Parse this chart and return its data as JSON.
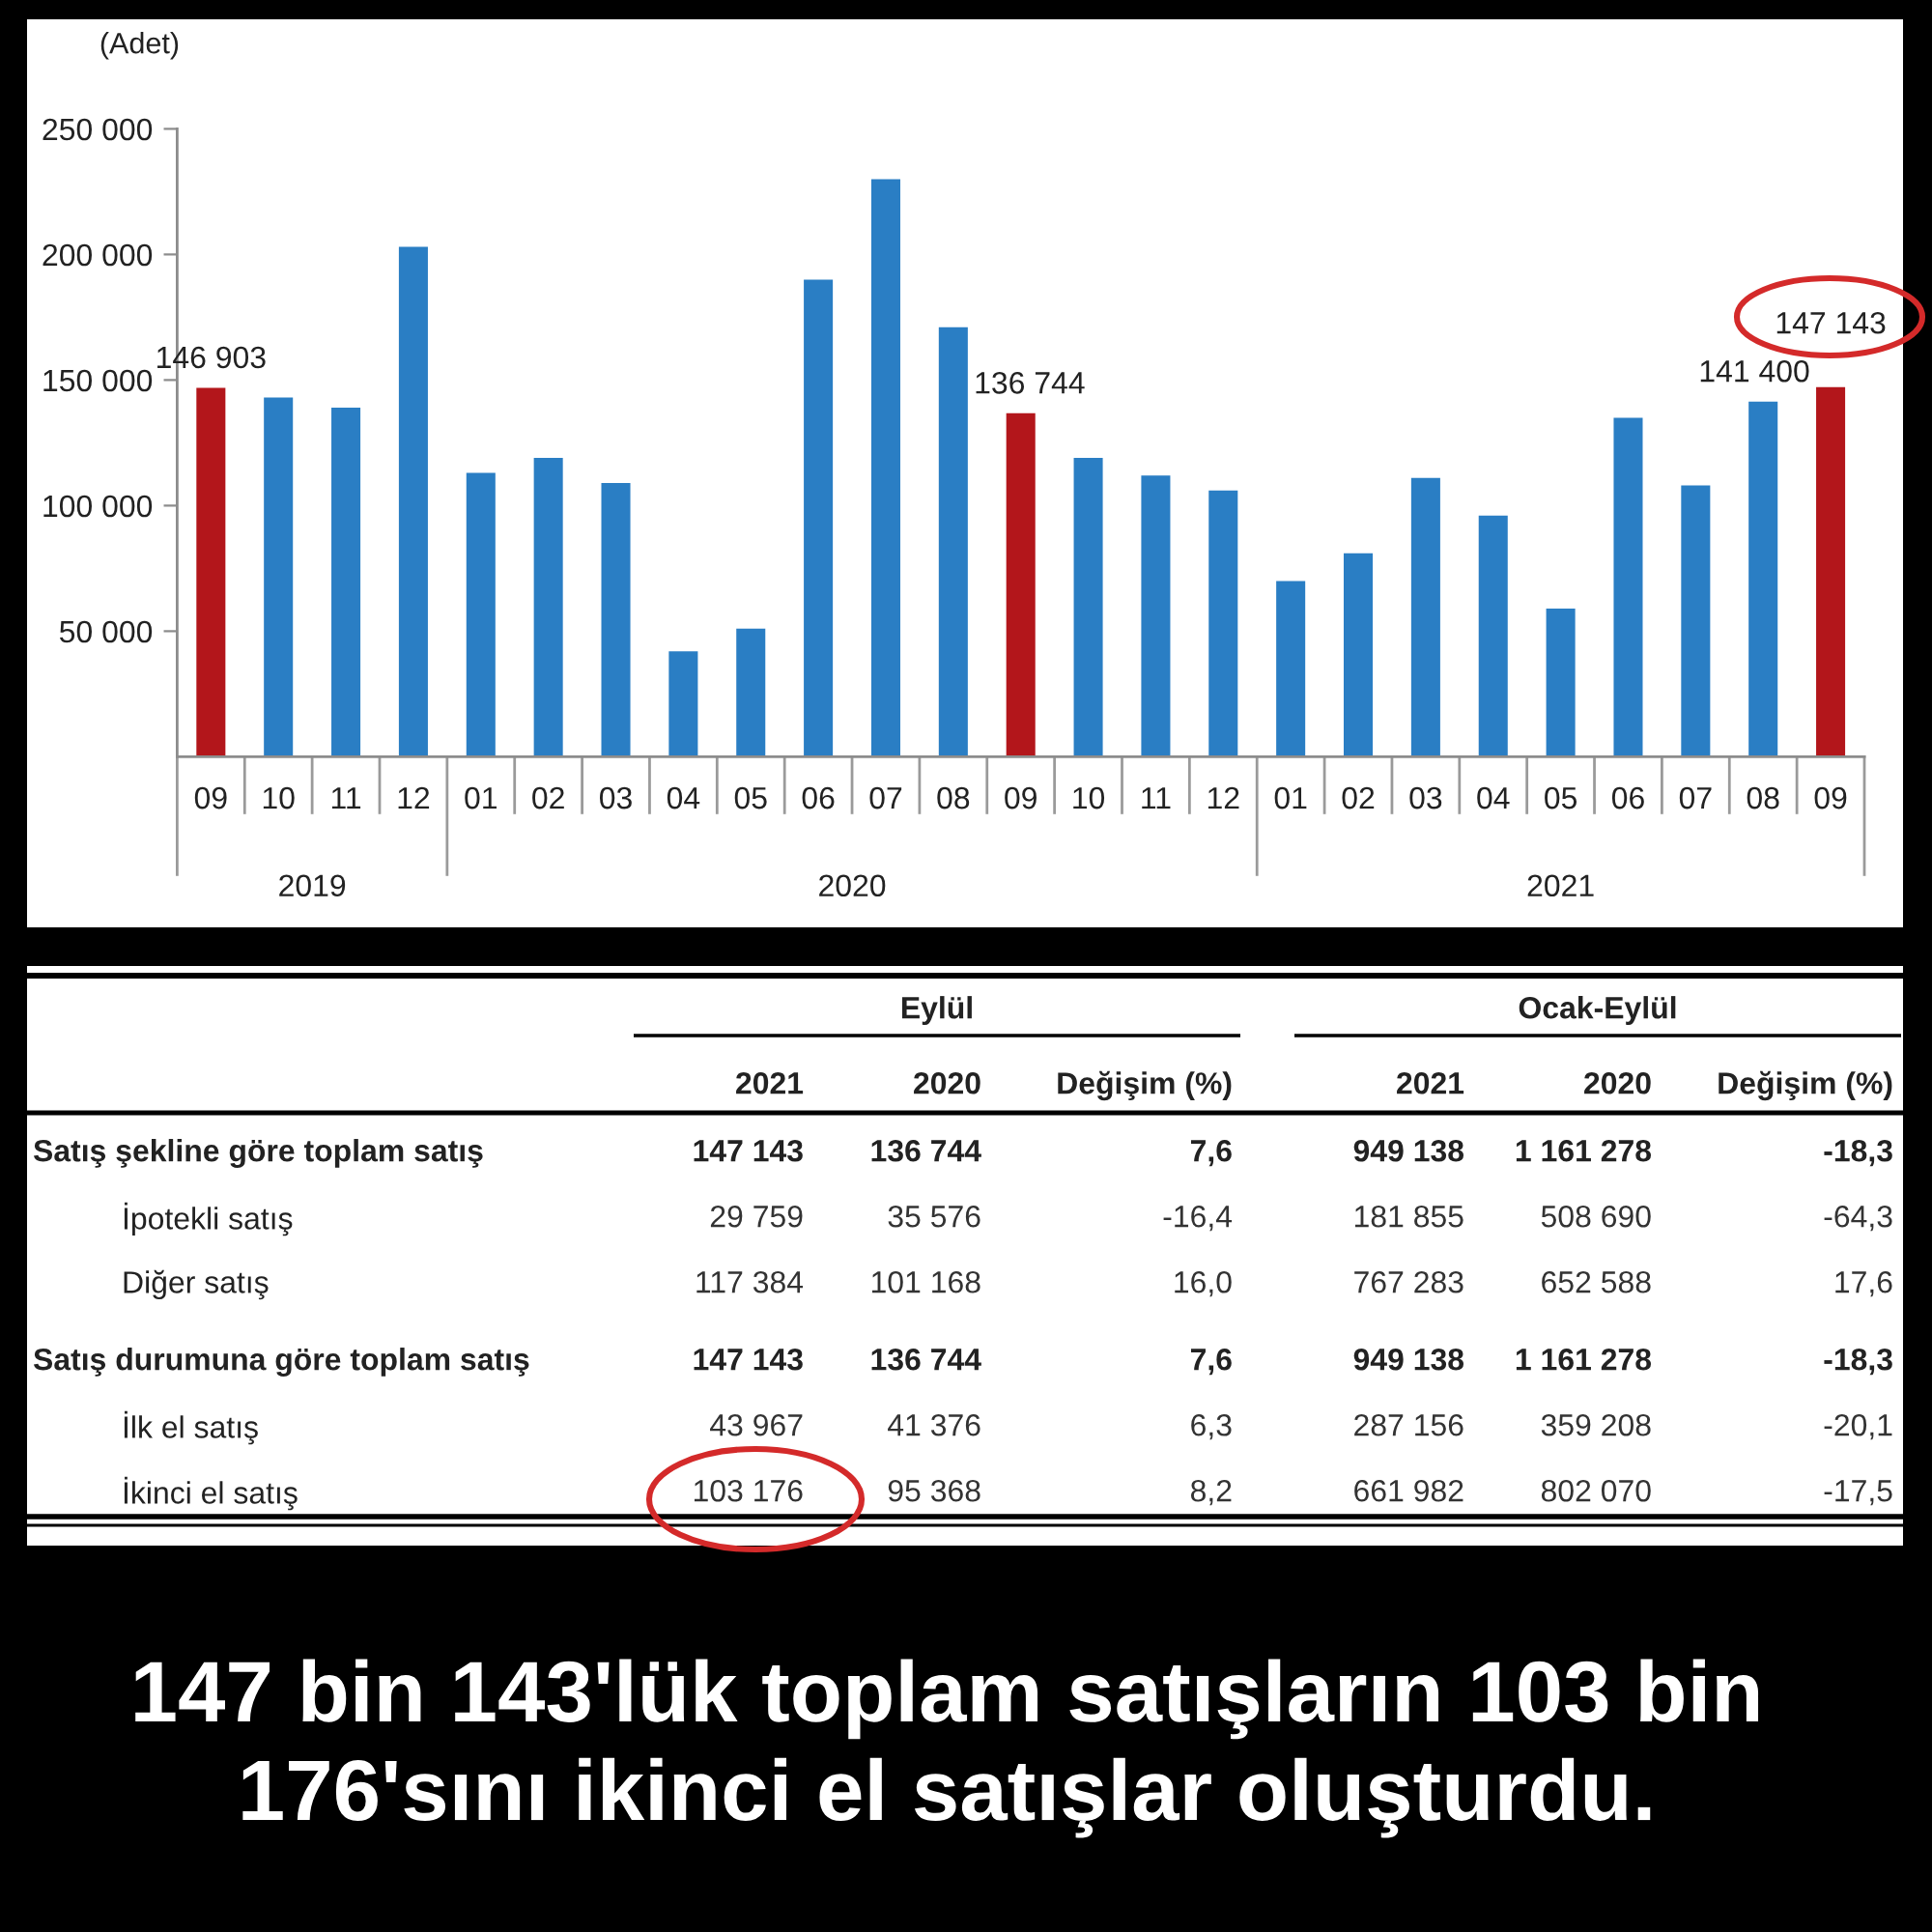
{
  "chart_data": [
    {
      "type": "bar",
      "ylabel": "(Adet)",
      "categories": [
        "09",
        "10",
        "11",
        "12",
        "01",
        "02",
        "03",
        "04",
        "05",
        "06",
        "07",
        "08",
        "09",
        "10",
        "11",
        "12",
        "01",
        "02",
        "03",
        "04",
        "05",
        "06",
        "07",
        "08",
        "09"
      ],
      "values": [
        146903,
        143000,
        139000,
        203000,
        113000,
        119000,
        109000,
        42000,
        51000,
        190000,
        230000,
        171000,
        136744,
        119000,
        112000,
        106000,
        70000,
        81000,
        111000,
        96000,
        59000,
        135000,
        108000,
        141400,
        147143
      ],
      "colors": [
        "#b3161b",
        "#2a7ec4",
        "#2a7ec4",
        "#2a7ec4",
        "#2a7ec4",
        "#2a7ec4",
        "#2a7ec4",
        "#2a7ec4",
        "#2a7ec4",
        "#2a7ec4",
        "#2a7ec4",
        "#2a7ec4",
        "#b3161b",
        "#2a7ec4",
        "#2a7ec4",
        "#2a7ec4",
        "#2a7ec4",
        "#2a7ec4",
        "#2a7ec4",
        "#2a7ec4",
        "#2a7ec4",
        "#2a7ec4",
        "#2a7ec4",
        "#2a7ec4",
        "#b3161b"
      ],
      "value_labels": [
        "146 903",
        null,
        null,
        null,
        null,
        null,
        null,
        null,
        null,
        null,
        null,
        null,
        "136 744",
        null,
        null,
        null,
        null,
        null,
        null,
        null,
        null,
        null,
        null,
        "141 400",
        "147 143"
      ],
      "ylim": [
        0,
        250000
      ],
      "yticks": [
        {
          "value": 50000,
          "label": "50 000"
        },
        {
          "value": 100000,
          "label": "100 000"
        },
        {
          "value": 150000,
          "label": "150 000"
        },
        {
          "value": 200000,
          "label": "200 000"
        },
        {
          "value": 250000,
          "label": "250 000"
        }
      ],
      "annotations": [
        "2019",
        "2020",
        "2021"
      ]
    },
    {
      "type": "other",
      "categories": [
        "2021",
        "2020",
        "Değişim (%)",
        "2021",
        "2020",
        "Değişim (%)"
      ],
      "y_categories": [
        "Satış şekline göre toplam satış",
        "İpotekli satış",
        "Diğer satış",
        "Satış durumuna göre toplam satış",
        "İlk el satış",
        "İkinci el satış"
      ],
      "cell_labels": [
        [
          "147 143",
          "136 744",
          "7,6",
          "949 138",
          "1 161 278",
          "-18,3"
        ],
        [
          "29 759",
          "35 576",
          "-16,4",
          "181 855",
          "508 690",
          "-64,3"
        ],
        [
          "117 384",
          "101 168",
          "16,0",
          "767 283",
          "652 588",
          "17,6"
        ],
        [
          "147 143",
          "136 744",
          "7,6",
          "949 138",
          "1 161 278",
          "-18,3"
        ],
        [
          "43 967",
          "41 376",
          "6,3",
          "287 156",
          "359 208",
          "-20,1"
        ],
        [
          "103 176",
          "95 368",
          "8,2",
          "661 982",
          "802 070",
          "-17,5"
        ]
      ],
      "annotations": [
        "Eylül",
        "Ocak-Eylül"
      ]
    },
    {
      "type": "other",
      "annotations": [
        "147 bin 143'lük toplam satışların 103 bin 176'sını ikinci el satışlar oluşturdu."
      ]
    }
  ]
}
